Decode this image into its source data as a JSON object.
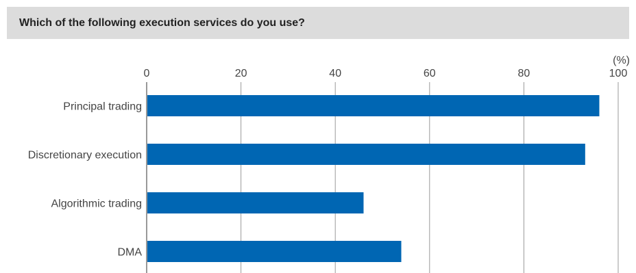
{
  "header": {
    "title": "Which of the following execution services do you use?"
  },
  "chart_data": {
    "type": "bar",
    "orientation": "horizontal",
    "categories": [
      "Principal trading",
      "Discretionary execution",
      "Algorithmic trading",
      "DMA"
    ],
    "values": [
      96,
      93,
      46,
      54
    ],
    "xlim": [
      0,
      100
    ],
    "xticks": [
      "0",
      "20",
      "40",
      "60",
      "80",
      "100"
    ],
    "unit_label": "(%)",
    "grid": true,
    "axis_position": "top",
    "bar_color": "#0066b3",
    "grid_color": "#999999"
  }
}
